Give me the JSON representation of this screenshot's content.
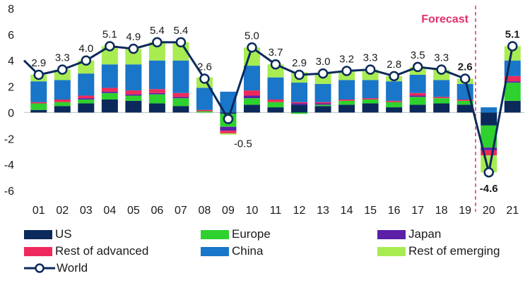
{
  "chart_data": {
    "type": "bar",
    "stacked": true,
    "annotation": "Forecast",
    "ylim": [
      -6,
      8
    ],
    "yticks": [
      "-6",
      "-4",
      "-2",
      "0",
      "2",
      "4",
      "6",
      "8"
    ],
    "categories": [
      "01",
      "02",
      "03",
      "04",
      "05",
      "06",
      "07",
      "08",
      "09",
      "10",
      "11",
      "12",
      "13",
      "14",
      "15",
      "16",
      "17",
      "18",
      "19",
      "20",
      "21"
    ],
    "series": [
      {
        "name": "US",
        "color": "#0b2a5b",
        "values": [
          0.2,
          0.5,
          0.7,
          1.0,
          0.9,
          0.7,
          0.5,
          0.0,
          -0.1,
          0.6,
          0.4,
          0.6,
          0.5,
          0.6,
          0.7,
          0.4,
          0.6,
          0.7,
          0.6,
          -1.0,
          0.9
        ]
      },
      {
        "name": "Europe",
        "color": "#2ed12e",
        "values": [
          0.5,
          0.3,
          0.3,
          0.5,
          0.4,
          0.7,
          0.6,
          0.1,
          -1.0,
          0.5,
          0.4,
          -0.1,
          0.1,
          0.3,
          0.3,
          0.4,
          0.6,
          0.4,
          0.3,
          -1.7,
          1.4
        ]
      },
      {
        "name": "Japan",
        "color": "#5b1fa8",
        "values": [
          0.0,
          0.0,
          0.1,
          0.1,
          0.1,
          0.1,
          0.1,
          0.0,
          -0.3,
          0.2,
          0.0,
          0.1,
          0.1,
          0.0,
          0.0,
          0.0,
          0.1,
          0.0,
          0.0,
          -0.2,
          0.1
        ]
      },
      {
        "name": "Rest of advanced",
        "color": "#ee2a5c",
        "values": [
          0.1,
          0.2,
          0.2,
          0.3,
          0.3,
          0.3,
          0.3,
          0.1,
          -0.2,
          0.4,
          0.2,
          0.1,
          0.1,
          0.1,
          0.1,
          0.1,
          0.2,
          0.1,
          0.1,
          -0.4,
          0.4
        ]
      },
      {
        "name": "China",
        "color": "#1976c8",
        "values": [
          1.6,
          1.5,
          1.7,
          1.8,
          2.0,
          2.2,
          2.5,
          1.7,
          1.6,
          1.9,
          1.7,
          1.5,
          1.4,
          1.5,
          1.4,
          1.5,
          1.4,
          1.3,
          1.2,
          0.4,
          1.2
        ]
      },
      {
        "name": "Rest of emerging",
        "color": "#a8ec52",
        "values": [
          0.5,
          0.8,
          1.0,
          1.4,
          1.2,
          1.4,
          1.4,
          0.8,
          -0.1,
          1.4,
          1.0,
          0.8,
          0.8,
          0.7,
          0.8,
          0.4,
          0.6,
          0.8,
          0.4,
          -1.3,
          1.1
        ]
      }
    ],
    "line": {
      "name": "World",
      "color": "#0b2a5b",
      "values": [
        2.9,
        3.3,
        4.0,
        5.1,
        4.9,
        5.4,
        5.4,
        2.6,
        -0.5,
        5.0,
        3.7,
        2.9,
        3.0,
        3.2,
        3.3,
        2.8,
        3.5,
        3.3,
        2.6,
        -4.6,
        5.1
      ],
      "labels": [
        "2.9",
        "3.3",
        "4.0",
        "5.1",
        "4.9",
        "5.4",
        "5.4",
        "2.6",
        "-0.5",
        "5.0",
        "3.7",
        "2.9",
        "3.0",
        "3.2",
        "3.3",
        "2.8",
        "3.5",
        "3.3",
        "2.6",
        "-4.6",
        "5.1"
      ],
      "bold_labels": [
        18,
        19,
        20
      ]
    },
    "forecast_color": "#e0306a",
    "legend_position": "bottom"
  }
}
